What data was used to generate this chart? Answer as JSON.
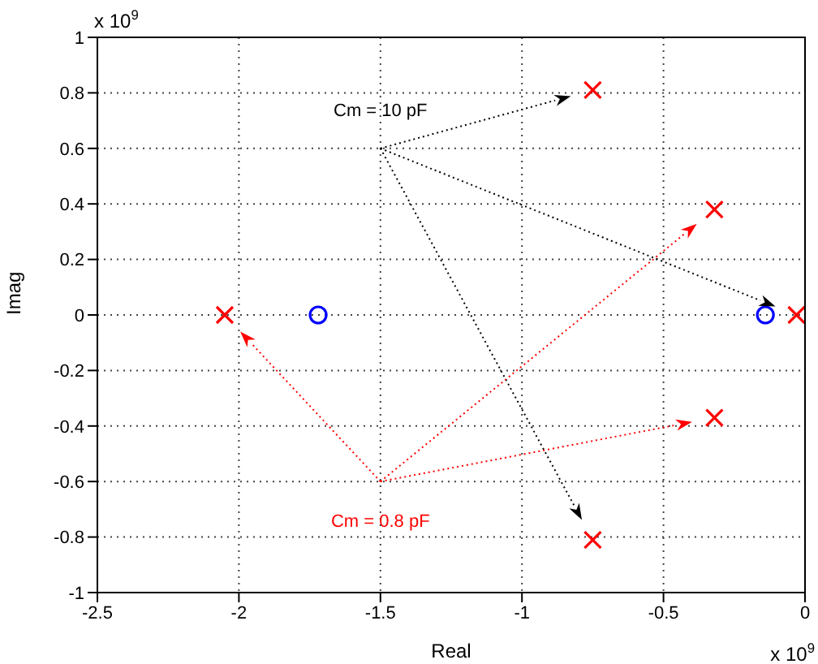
{
  "chart_data": {
    "type": "scatter",
    "xlabel": "Real",
    "ylabel": "Imag",
    "xlim": [
      -2.5,
      0
    ],
    "xticks": [
      -2.5,
      -2,
      -1.5,
      -1,
      -0.5,
      0
    ],
    "ylim": [
      -1,
      1
    ],
    "yticks": [
      -1,
      -0.8,
      -0.6,
      -0.4,
      -0.2,
      0,
      0.2,
      0.4,
      0.6,
      0.8,
      1
    ],
    "grid": true,
    "series": [
      {
        "color": "#ff0000",
        "marker": "cross",
        "x": [
          -0.75,
          -0.03,
          -0.75
        ],
        "values": [
          0.81,
          0,
          -0.81
        ]
      },
      {
        "color": "#ff0000",
        "marker": "cross",
        "x": [
          -2.05,
          -0.32,
          -0.32
        ],
        "values": [
          0,
          0.38,
          -0.37
        ]
      },
      {
        "color": "#0000ff",
        "marker": "circle",
        "x": [
          -1.72,
          -0.14
        ],
        "values": [
          0,
          0
        ]
      }
    ],
    "annotations": [
      "Cm = 10 pF",
      "Cm = 0.8 pF",
      "x 10$^{9}$",
      "x 10$^{9}$"
    ]
  }
}
